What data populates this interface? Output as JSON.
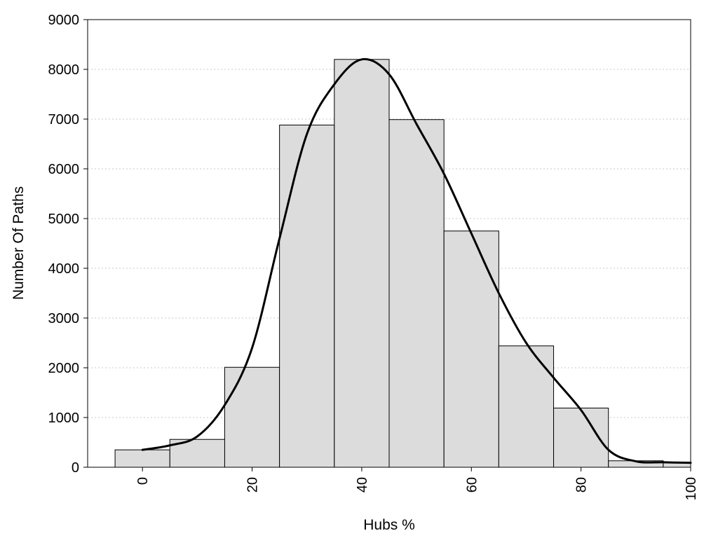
{
  "chart_data": {
    "type": "bar",
    "subtype": "histogram-with-density-curve",
    "title": "",
    "xlabel": "Hubs %",
    "ylabel": "Number Of Paths",
    "xlim": [
      -10,
      100
    ],
    "ylim": [
      0,
      9000
    ],
    "x_ticks": [
      0,
      20,
      40,
      60,
      80,
      100
    ],
    "y_ticks": [
      0,
      1000,
      2000,
      3000,
      4000,
      5000,
      6000,
      7000,
      8000,
      9000
    ],
    "grid": "horizontal dotted",
    "bin_width": 10,
    "bins": [
      {
        "center": 0,
        "value": 350
      },
      {
        "center": 10,
        "value": 560
      },
      {
        "center": 20,
        "value": 2010
      },
      {
        "center": 30,
        "value": 6880
      },
      {
        "center": 40,
        "value": 8200
      },
      {
        "center": 50,
        "value": 6990
      },
      {
        "center": 60,
        "value": 4750
      },
      {
        "center": 70,
        "value": 2440
      },
      {
        "center": 80,
        "value": 1190
      },
      {
        "center": 90,
        "value": 130
      },
      {
        "center": 100,
        "value": 100
      }
    ],
    "curve": {
      "x": [
        0,
        5,
        10,
        15,
        20,
        25,
        30,
        35,
        40,
        45,
        50,
        55,
        60,
        65,
        70,
        75,
        80,
        85,
        90,
        95,
        100
      ],
      "y": [
        350,
        440,
        620,
        1250,
        2400,
        4600,
        6700,
        7700,
        8200,
        7900,
        6900,
        5900,
        4700,
        3500,
        2500,
        1800,
        1150,
        350,
        120,
        100,
        90
      ]
    },
    "colors": {
      "bar_fill": "#dcdcdc",
      "bar_stroke": "#000000",
      "curve": "#000000",
      "grid": "#c8c8c8"
    }
  }
}
